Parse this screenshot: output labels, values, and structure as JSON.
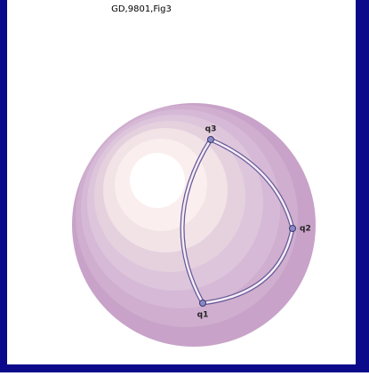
{
  "header": {
    "title": "GD,9801,Fig3"
  },
  "nodes": [
    {
      "label": "q1"
    },
    {
      "label": "q2"
    },
    {
      "label": "q3"
    }
  ]
}
